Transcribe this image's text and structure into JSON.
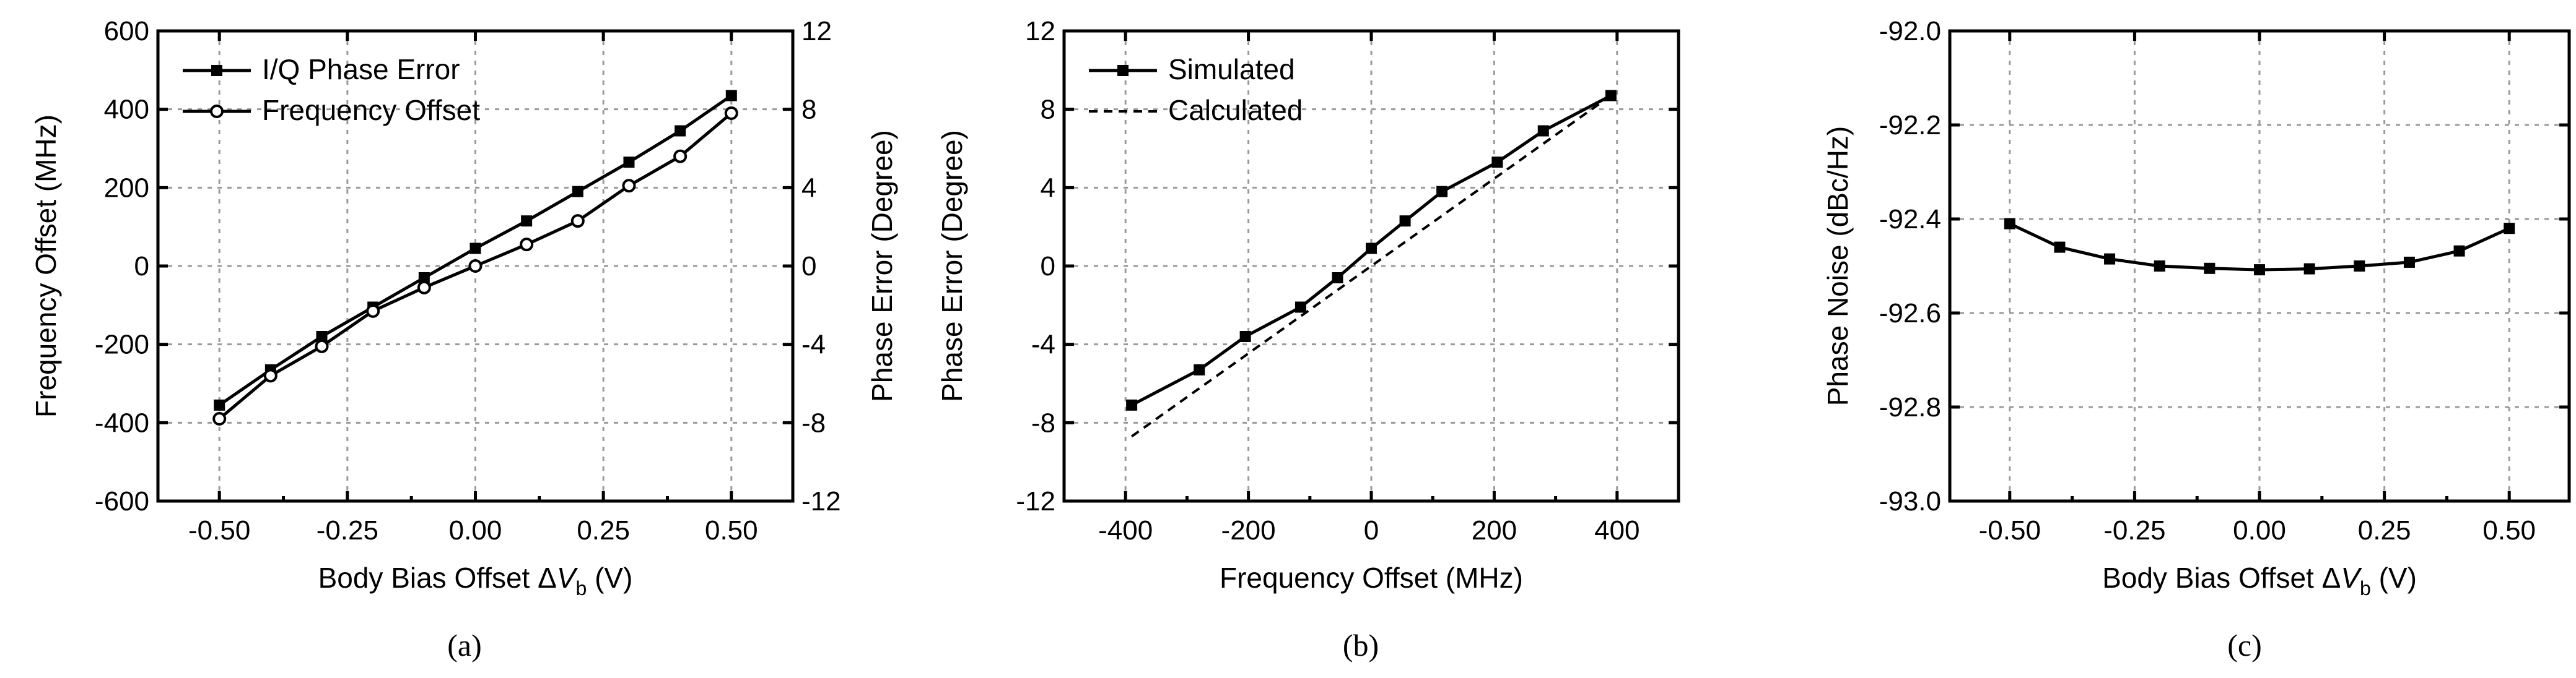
{
  "figure": {
    "panels": [
      {
        "id": "a",
        "caption": "(a)"
      },
      {
        "id": "b",
        "caption": "(b)"
      },
      {
        "id": "c",
        "caption": "(c)"
      }
    ]
  },
  "chart_data": [
    {
      "panel": "a",
      "type": "line",
      "title": "",
      "xlabel": "Body Bias Offset ΔV_b (V)",
      "xlabel_parts": {
        "prefix": "Body Bias Offset Δ",
        "var": "V",
        "sub": "b",
        "suffix": " (V)"
      },
      "ylabel": "Frequency Offset (MHz)",
      "y2label": "Phase Error (Degree)",
      "xlim": [
        -0.62,
        0.62
      ],
      "ylim": [
        -600,
        600
      ],
      "y2lim": [
        -12,
        12
      ],
      "xticks": [
        -0.5,
        -0.25,
        0,
        0.25,
        0.5
      ],
      "xtick_labels": [
        "-0.50",
        "-0.25",
        "0.00",
        "0.25",
        "0.50"
      ],
      "yticks": [
        -600,
        -400,
        -200,
        0,
        200,
        400,
        600
      ],
      "ytick_labels": [
        "-600",
        "-400",
        "-200",
        "0",
        "200",
        "400",
        "600"
      ],
      "y2ticks": [
        -12,
        -8,
        -4,
        0,
        4,
        8,
        12
      ],
      "y2tick_labels": [
        "-12",
        "-8",
        "-4",
        "0",
        "4",
        "8",
        "12"
      ],
      "grid": true,
      "legend_position": "top-left",
      "series": [
        {
          "name": "I/Q Phase Error",
          "axis": "y2",
          "marker": "filled-square",
          "style": "solid",
          "x": [
            -0.5,
            -0.4,
            -0.3,
            -0.2,
            -0.1,
            0.0,
            0.1,
            0.2,
            0.3,
            0.4,
            0.5
          ],
          "values": [
            -7.1,
            -5.3,
            -3.6,
            -2.1,
            -0.6,
            0.9,
            2.3,
            3.8,
            5.3,
            6.9,
            8.7
          ]
        },
        {
          "name": "Frequency Offset",
          "axis": "y",
          "marker": "open-circle",
          "style": "solid",
          "x": [
            -0.5,
            -0.4,
            -0.3,
            -0.2,
            -0.1,
            0.0,
            0.1,
            0.2,
            0.3,
            0.4,
            0.5
          ],
          "values": [
            -390,
            -280,
            -205,
            -115,
            -55,
            0,
            55,
            115,
            205,
            280,
            390
          ]
        }
      ]
    },
    {
      "panel": "b",
      "type": "line",
      "title": "",
      "xlabel": "Frequency Offset (MHz)",
      "ylabel": "Phase Error (Degree)",
      "xlim": [
        -500,
        500
      ],
      "ylim": [
        -12,
        12
      ],
      "xticks": [
        -400,
        -200,
        0,
        200,
        400
      ],
      "xtick_labels": [
        "-400",
        "-200",
        "0",
        "200",
        "400"
      ],
      "yticks": [
        -12,
        -8,
        -4,
        0,
        4,
        8,
        12
      ],
      "ytick_labels": [
        "-12",
        "-8",
        "-4",
        "0",
        "4",
        "8",
        "12"
      ],
      "grid": true,
      "legend_position": "top-left",
      "series": [
        {
          "name": "Simulated",
          "marker": "filled-square",
          "style": "solid",
          "x": [
            -390,
            -280,
            -205,
            -115,
            -55,
            0,
            55,
            115,
            205,
            280,
            390
          ],
          "values": [
            -7.1,
            -5.3,
            -3.6,
            -2.1,
            -0.6,
            0.9,
            2.3,
            3.8,
            5.3,
            6.9,
            8.7
          ]
        },
        {
          "name": "Calculated",
          "marker": "none",
          "style": "dashed",
          "x": [
            -390,
            390
          ],
          "values": [
            -8.7,
            8.7
          ]
        }
      ]
    },
    {
      "panel": "c",
      "type": "line",
      "title": "",
      "xlabel": "Body Bias Offset ΔV_b (V)",
      "xlabel_parts": {
        "prefix": "Body Bias Offset Δ",
        "var": "V",
        "sub": "b",
        "suffix": " (V)"
      },
      "ylabel": "Phase Noise (dBc/Hz)",
      "xlim": [
        -0.62,
        0.62
      ],
      "ylim": [
        -93.0,
        -92.0
      ],
      "xticks": [
        -0.5,
        -0.25,
        0,
        0.25,
        0.5
      ],
      "xtick_labels": [
        "-0.50",
        "-0.25",
        "0.00",
        "0.25",
        "0.50"
      ],
      "yticks": [
        -93.0,
        -92.8,
        -92.6,
        -92.4,
        -92.2,
        -92.0
      ],
      "ytick_labels": [
        "-93.0",
        "-92.8",
        "-92.6",
        "-92.4",
        "-92.2",
        "-92.0"
      ],
      "grid": true,
      "series": [
        {
          "name": "Phase Noise",
          "marker": "filled-square",
          "style": "solid",
          "x": [
            -0.5,
            -0.4,
            -0.3,
            -0.2,
            -0.1,
            0.0,
            0.1,
            0.2,
            0.3,
            0.4,
            0.5
          ],
          "values": [
            -92.41,
            -92.46,
            -92.485,
            -92.5,
            -92.505,
            -92.508,
            -92.506,
            -92.5,
            -92.492,
            -92.468,
            -92.42
          ]
        }
      ]
    }
  ]
}
